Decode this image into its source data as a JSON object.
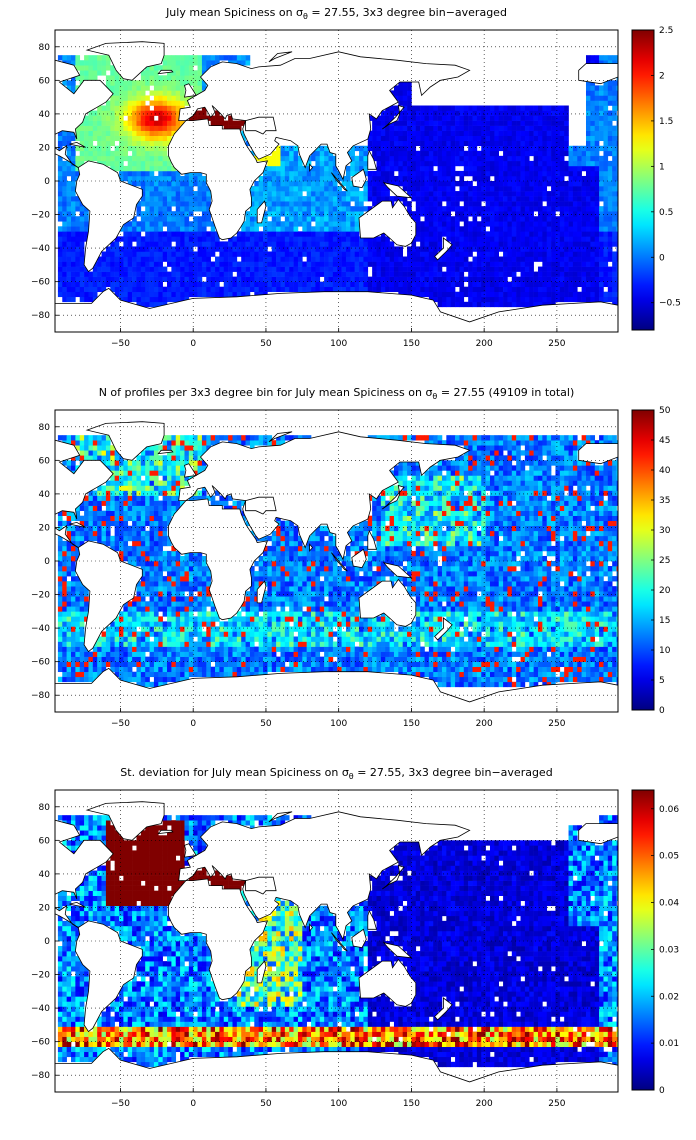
{
  "panels": [
    {
      "id": "spiciness",
      "title_prefix": "July mean Spiciness on σ",
      "title_sub": "θ",
      "title_suffix": " = 27.55, 3x3 degree bin−averaged",
      "colorbar": {
        "min": -0.8,
        "max": 2.5,
        "tick_values": [
          2.5,
          2,
          1.5,
          1,
          0.5,
          0,
          -0.5
        ],
        "tick_labels": [
          "2.5",
          "2",
          "1.5",
          "1",
          "0.5",
          "0",
          "−0.5"
        ]
      }
    },
    {
      "id": "profile-count",
      "title_prefix": "N of profiles per 3x3 degree bin for July mean Spiciness on σ",
      "title_sub": "θ",
      "title_suffix": " = 27.55 (49109 in total)",
      "colorbar": {
        "min": 0,
        "max": 50,
        "tick_values": [
          50,
          45,
          40,
          35,
          30,
          25,
          20,
          15,
          10,
          5,
          0
        ],
        "tick_labels": [
          "50",
          "45",
          "40",
          "35",
          "30",
          "25",
          "20",
          "15",
          "10",
          "5",
          "0"
        ]
      }
    },
    {
      "id": "std-deviation",
      "title_prefix": "St. deviation for July mean Spiciness on σ",
      "title_sub": "θ",
      "title_suffix": " = 27.55, 3x3 degree bin−averaged",
      "colorbar": {
        "min": 0,
        "max": 0.064,
        "tick_values": [
          0.06,
          0.05,
          0.04,
          0.03,
          0.02,
          0.01,
          0
        ],
        "tick_labels": [
          "0.06",
          "0.05",
          "0.04",
          "0.03",
          "0.02",
          "0.01",
          "0"
        ]
      }
    }
  ],
  "map_axes": {
    "lon_range": [
      -95,
      292
    ],
    "lat_range": [
      -90,
      90
    ],
    "x_ticks": [
      -50,
      0,
      50,
      100,
      150,
      200,
      250
    ],
    "x_tick_labels": [
      "−50",
      "0",
      "50",
      "100",
      "150",
      "200",
      "250"
    ],
    "y_ticks": [
      80,
      60,
      40,
      20,
      0,
      -20,
      -40,
      -60,
      -80
    ],
    "y_tick_labels": [
      "80",
      "60",
      "40",
      "20",
      "0",
      "−20",
      "−40",
      "−60",
      "−80"
    ],
    "grid": "dotted"
  },
  "colormap": "jet",
  "land_color": "#ffffff",
  "coastline_color": "#000000"
}
